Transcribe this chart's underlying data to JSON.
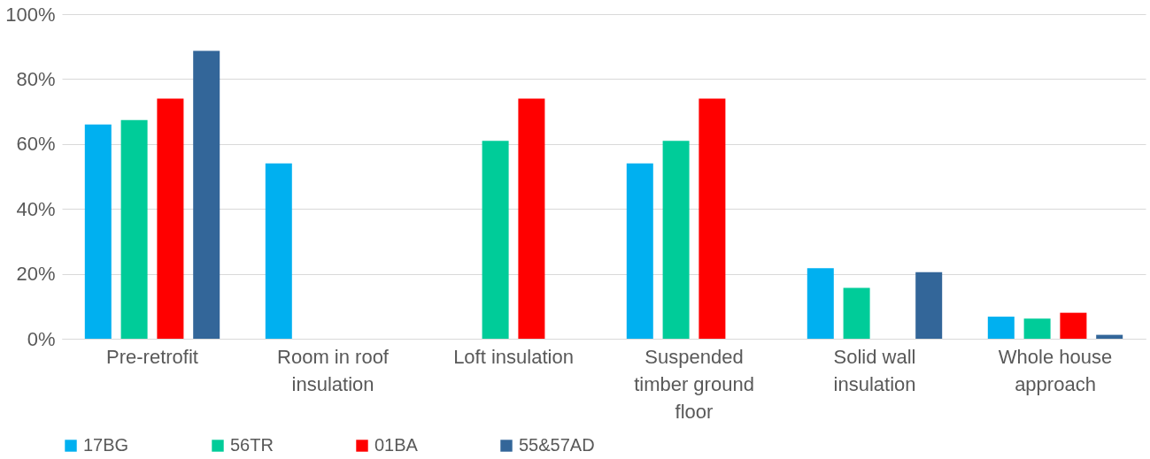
{
  "chart_data": {
    "type": "bar",
    "categories": [
      "Pre-retrofit",
      "Room in roof insulation",
      "Loft insulation",
      "Suspended timber ground floor",
      "Solid wall insulation",
      "Whole house approach"
    ],
    "series": [
      {
        "name": "17BG",
        "color": "#00b0f0",
        "values": [
          66,
          54,
          null,
          54,
          21.7,
          6.8
        ]
      },
      {
        "name": "56TR",
        "color": "#00cc99",
        "values": [
          67.4,
          null,
          61,
          61,
          15.7,
          6.2
        ]
      },
      {
        "name": "01BA",
        "color": "#ff0000",
        "values": [
          74,
          null,
          74,
          74,
          null,
          8
        ]
      },
      {
        "name": "55&57AD",
        "color": "#336699",
        "values": [
          88.7,
          null,
          null,
          null,
          20.5,
          1.2
        ]
      }
    ],
    "ylim": [
      0,
      100
    ],
    "yticks": [
      {
        "value": 0,
        "label": "0%"
      },
      {
        "value": 20,
        "label": "20%"
      },
      {
        "value": 40,
        "label": "40%"
      },
      {
        "value": 60,
        "label": "60%"
      },
      {
        "value": 80,
        "label": "80%"
      },
      {
        "value": 100,
        "label": "100%"
      }
    ],
    "grid": "y",
    "legend": "bottom"
  }
}
